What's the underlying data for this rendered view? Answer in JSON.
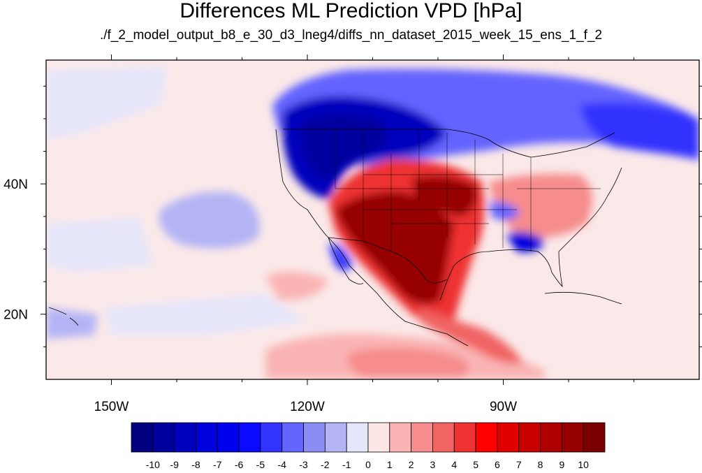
{
  "title": "Differences ML Prediction VPD [hPa]",
  "subtitle": "./f_2_model_output_b8_e_30_d3_lneg4/diffs_nn_dataset_2015_week_15_ens_1_f_2",
  "map": {
    "lon_range": [
      -160,
      -60
    ],
    "lat_range": [
      10,
      59
    ],
    "lon_labels": [
      {
        "value": -150,
        "label": "150W"
      },
      {
        "value": -120,
        "label": "120W"
      },
      {
        "value": -90,
        "label": "90W"
      }
    ],
    "lat_labels": [
      {
        "value": 40,
        "label": "40N"
      },
      {
        "value": 20,
        "label": "20N"
      }
    ],
    "colormap": "blue-white-red diverging",
    "field_pattern": "positive (red) over southwestern US, Mexico and south-central plains; negative (blue) over northwestern US and southern Canada; weak positive over Pacific south of 20N"
  },
  "colorbar": {
    "levels": [
      "-10",
      "-9",
      "-8",
      "-7",
      "-6",
      "-5",
      "-4",
      "-3",
      "-2",
      "-1",
      "0",
      "1",
      "2",
      "3",
      "4",
      "5",
      "6",
      "7",
      "8",
      "9",
      "10"
    ],
    "colors": [
      "#000080",
      "#00009e",
      "#0000bd",
      "#0000dc",
      "#0000f0",
      "#0a0aff",
      "#3333ff",
      "#6464ff",
      "#8c8cf5",
      "#b4b4f5",
      "#e6e6fa",
      "#fde6e6",
      "#fab4b4",
      "#f68c8c",
      "#f06464",
      "#ee3232",
      "#ff0000",
      "#e00000",
      "#c80000",
      "#ae0000",
      "#960000",
      "#780000"
    ]
  }
}
